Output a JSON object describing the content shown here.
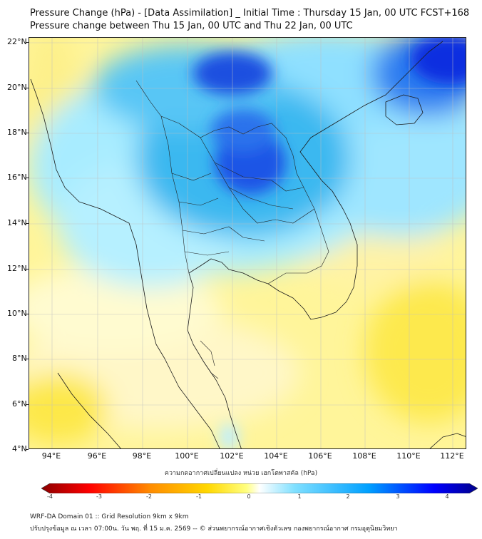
{
  "title": {
    "line1": "Pressure Change (hPa) - [Data Assimilation] _ Initial Time : Thursday 15 Jan, 00 UTC FCST+168",
    "line2": "Pressure change between Thu 15 Jan, 00 UTC and Thu 22 Jan, 00 UTC"
  },
  "map": {
    "lat_labels": [
      "22°N",
      "20°N",
      "18°N",
      "16°N",
      "14°N",
      "12°N",
      "10°N",
      "8°N",
      "6°N",
      "4°N"
    ],
    "lon_labels": [
      "94°E",
      "96°E",
      "98°E",
      "100°E",
      "102°E",
      "104°E",
      "106°E",
      "108°E",
      "110°E",
      "112°E"
    ]
  },
  "colorbar": {
    "label": "ความกดอากาศเปลี่ยนแปลง หน่วย เฮกโตพาสคัล (hPa)",
    "ticks": [
      "-4",
      "-3",
      "-2",
      "-1",
      "0",
      "1",
      "2",
      "3",
      "4"
    ],
    "colors": [
      "#8b0000",
      "#ff0000",
      "#ff8c00",
      "#ffd700",
      "#ffff80",
      "#ffffff",
      "#80e0ff",
      "#00a0ff",
      "#0000ff",
      "#00008b"
    ]
  },
  "footer": {
    "line1": "WRF-DA Domain 01 :: Grid Resolution 9km x 9km",
    "line2": "ปรับปรุงข้อมูล ณ เวลา 07:00น. วัน พฤ. ที่ 15 ม.ค. 2569 -- © ส่วนพยากรณ์อากาศเชิงตัวเลข กองพยากรณ์อากาศ กรมอุตุนิยมวิทยา"
  }
}
